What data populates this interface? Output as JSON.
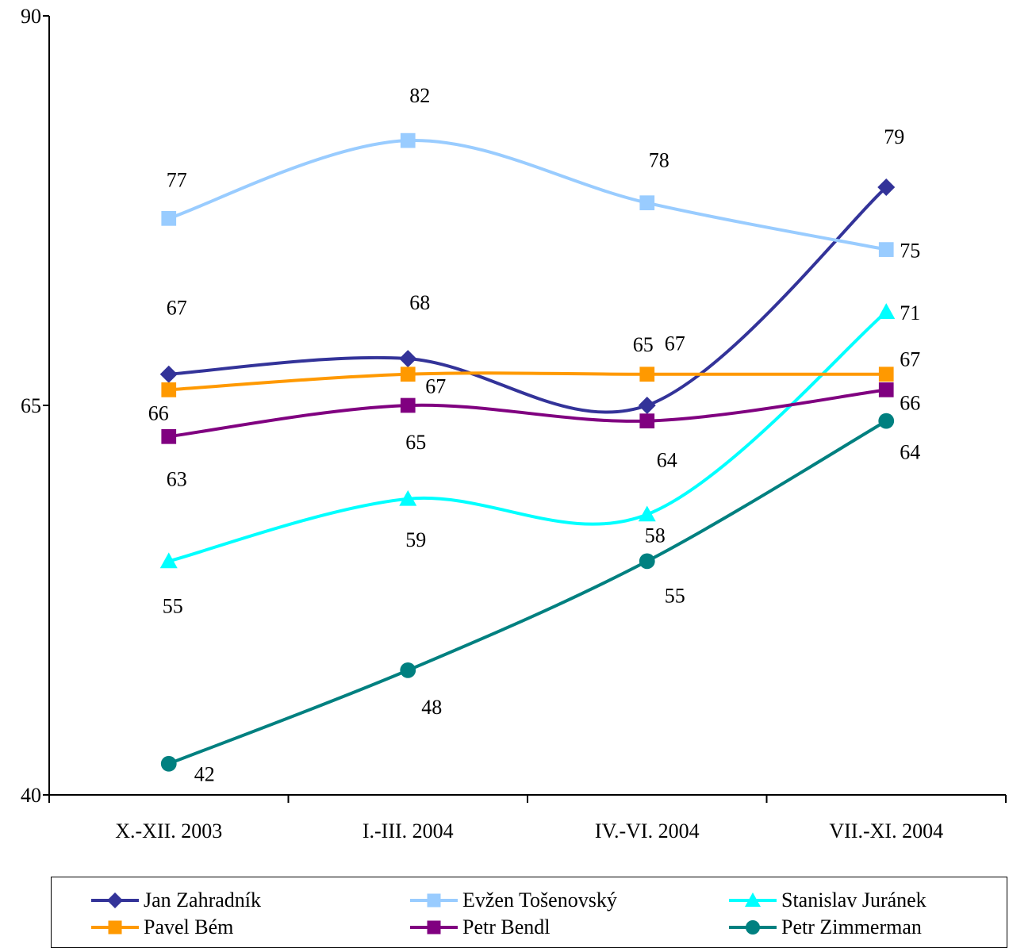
{
  "chart_data": {
    "type": "line",
    "title": "",
    "xlabel": "",
    "ylabel": "",
    "ylim": [
      40,
      90
    ],
    "yticks": [
      "90",
      "65",
      "40"
    ],
    "categories": [
      "X.-XII. 2003",
      "I.-III. 2004",
      "IV.-VI. 2004",
      "VII.-XI. 2004"
    ],
    "grid": false,
    "legend": "bottom",
    "series": [
      {
        "name": "Jan Zahradník",
        "color": "#333399",
        "marker": "diamond",
        "values": [
          67,
          68,
          65,
          79
        ],
        "labels": [
          "67",
          "68",
          "65",
          "79"
        ]
      },
      {
        "name": "Evžen Tošenovský",
        "color": "#99CCFF",
        "marker": "square",
        "values": [
          77,
          82,
          78,
          75
        ],
        "labels": [
          "77",
          "82",
          "78",
          "75"
        ]
      },
      {
        "name": "Stanislav Juránek",
        "color": "#00FFFF",
        "marker": "triangle",
        "values": [
          55,
          59,
          58,
          71
        ],
        "labels": [
          "55",
          "59",
          "58",
          "71"
        ]
      },
      {
        "name": "Pavel Bém",
        "color": "#FF9900",
        "marker": "square",
        "values": [
          66,
          67,
          67,
          67
        ],
        "labels": [
          "66",
          "67",
          "67",
          "67"
        ]
      },
      {
        "name": "Petr Bendl",
        "color": "#800080",
        "marker": "square",
        "values": [
          63,
          65,
          64,
          66
        ],
        "labels": [
          "63",
          "65",
          "64",
          "66"
        ]
      },
      {
        "name": "Petr Zimmerman",
        "color": "#008080",
        "marker": "circle",
        "values": [
          42,
          48,
          55,
          64
        ],
        "labels": [
          "42",
          "48",
          "55",
          "64"
        ]
      }
    ]
  }
}
